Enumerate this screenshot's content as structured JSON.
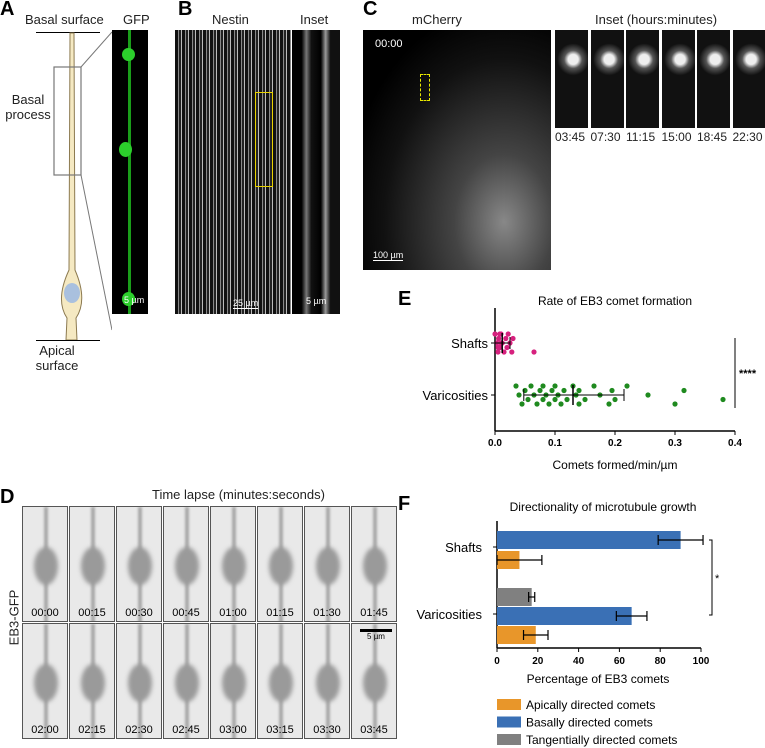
{
  "panelA": {
    "label": "A",
    "top": "Basal surface",
    "gfp": "GFP",
    "process": "Basal process",
    "bottom": "Apical surface",
    "scale": "5 µm"
  },
  "panelB": {
    "label": "B",
    "nestin": "Nestin",
    "inset": "Inset",
    "scale1": "25 µm",
    "scale2": "5 µm"
  },
  "panelC": {
    "label": "C",
    "mcherry": "mCherry",
    "inset": "Inset (hours:minutes)",
    "time": "00:00",
    "scale": "100 µm",
    "inset_times": [
      "03:45",
      "07:30",
      "11:15",
      "15:00",
      "18:45",
      "22:30"
    ]
  },
  "panelD": {
    "label": "D",
    "title": "Time lapse (minutes:seconds)",
    "ylabel": "EB3-GFP",
    "scale": "5 µm",
    "times": [
      "00:00",
      "00:15",
      "00:30",
      "00:45",
      "01:00",
      "01:15",
      "01:30",
      "01:45",
      "02:00",
      "02:15",
      "02:30",
      "02:45",
      "03:00",
      "03:15",
      "03:30",
      "03:45"
    ]
  },
  "chart_data": [
    {
      "panel": "E",
      "type": "scatter",
      "title": "Rate of EB3 comet formation",
      "xlabel": "Comets formed/min/µm",
      "xlim": [
        0,
        0.4
      ],
      "xticks": [
        "0.0",
        "0.1",
        "0.2",
        "0.3",
        "0.4"
      ],
      "categories": [
        "Shafts",
        "Varicosities"
      ],
      "series": [
        {
          "category": "Shafts",
          "color": "#d6217e",
          "values": [
            0.0,
            0.003,
            0.005,
            0.006,
            0.008,
            0.01,
            0.012,
            0.015,
            0.018,
            0.02,
            0.022,
            0.025,
            0.028,
            0.03,
            0.005,
            0.008,
            0.01,
            0.065
          ],
          "mean": 0.012,
          "sd_low": 0.0,
          "sd_high": 0.025
        },
        {
          "category": "Varicosities",
          "color": "#1f8a1f",
          "values": [
            0.035,
            0.04,
            0.045,
            0.05,
            0.055,
            0.06,
            0.065,
            0.07,
            0.075,
            0.08,
            0.08,
            0.085,
            0.09,
            0.095,
            0.1,
            0.1,
            0.105,
            0.11,
            0.115,
            0.12,
            0.13,
            0.135,
            0.14,
            0.14,
            0.15,
            0.165,
            0.175,
            0.19,
            0.195,
            0.2,
            0.22,
            0.255,
            0.3,
            0.315,
            0.38
          ],
          "mean": 0.13,
          "sd_low": 0.048,
          "sd_high": 0.215
        }
      ],
      "significance": "****"
    },
    {
      "panel": "F",
      "type": "bar",
      "orientation": "horizontal",
      "title": "Directionality of microtubule growth",
      "xlabel": "Percentage of EB3 comets",
      "xlim": [
        0,
        100
      ],
      "xticks": [
        "0",
        "20",
        "40",
        "60",
        "80",
        "100"
      ],
      "categories": [
        "Shafts",
        "Varicosities"
      ],
      "series": [
        {
          "name": "Apically directed comets",
          "color": "#e8962a",
          "values": [
            11,
            19
          ],
          "err": [
            11,
            6
          ]
        },
        {
          "name": "Basally directed comets",
          "color": "#3a70b5",
          "values": [
            90,
            66
          ],
          "err": [
            11,
            7.5
          ]
        },
        {
          "name": "Tangentially directed comets",
          "color": "#808080",
          "values": [
            0,
            17
          ],
          "err": [
            0,
            1.5
          ]
        }
      ],
      "significance": "*"
    }
  ]
}
